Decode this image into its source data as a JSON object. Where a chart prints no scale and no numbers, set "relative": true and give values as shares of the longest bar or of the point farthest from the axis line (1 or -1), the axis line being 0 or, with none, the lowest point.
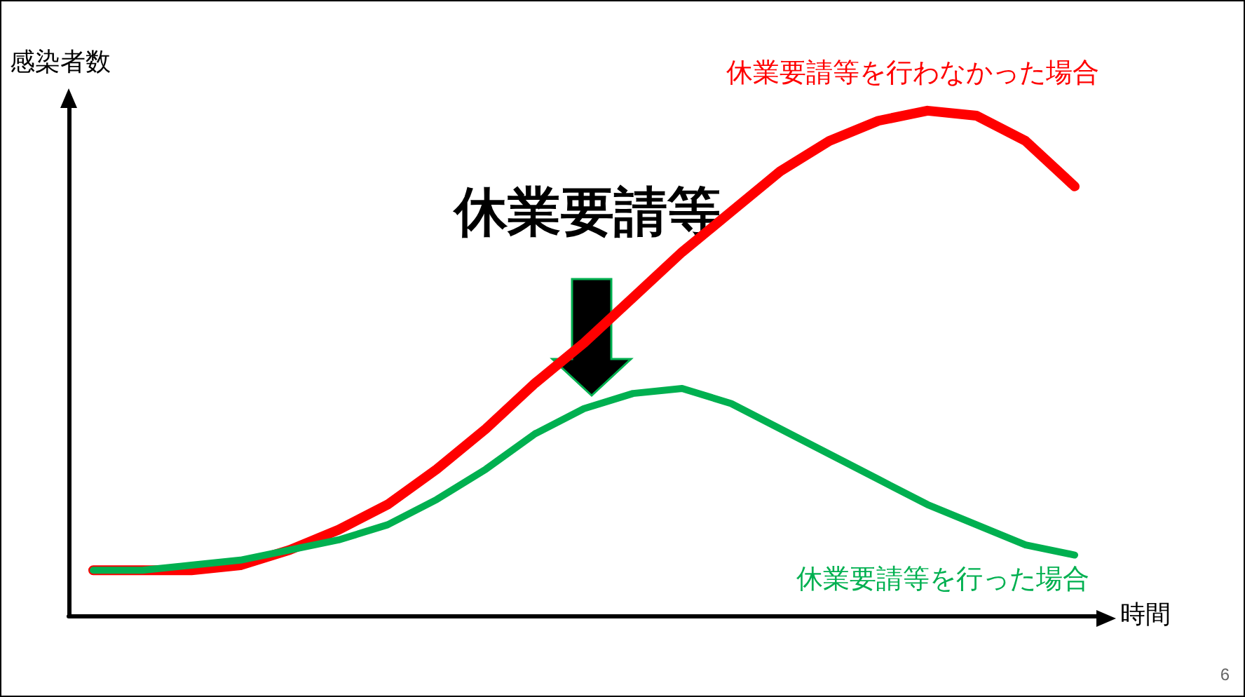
{
  "chart_data": {
    "type": "line",
    "relative": true,
    "xlabel": "時間",
    "ylabel": "感染者数",
    "annotations": [
      "休業要請等",
      "6"
    ],
    "categories": [
      null,
      null,
      null,
      null,
      null,
      null,
      null,
      null,
      null,
      null,
      null,
      null,
      null,
      null,
      null,
      null,
      null,
      null,
      null,
      null,
      null
    ],
    "series": [
      {
        "name": "休業要請等を行わなかった場合",
        "color": "#ff0000",
        "values": [
          0.09,
          0.09,
          0.09,
          0.1,
          0.13,
          0.17,
          0.22,
          0.29,
          0.37,
          0.46,
          0.54,
          0.63,
          0.72,
          0.8,
          0.88,
          0.94,
          0.98,
          1.0,
          0.99,
          0.94,
          0.85
        ]
      },
      {
        "name": "休業要請等を行った場合",
        "color": "#00b050",
        "values": [
          0.09,
          0.09,
          0.1,
          0.11,
          0.13,
          0.15,
          0.18,
          0.23,
          0.29,
          0.36,
          0.41,
          0.44,
          0.45,
          0.42,
          0.37,
          0.32,
          0.27,
          0.22,
          0.18,
          0.14,
          0.12
        ]
      }
    ],
    "grid": false,
    "legend": false,
    "marker": "none",
    "line_style": "solid"
  }
}
